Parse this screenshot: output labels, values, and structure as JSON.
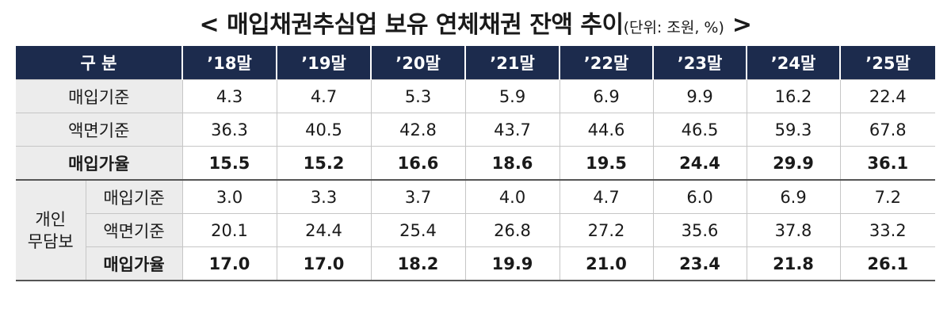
{
  "title": {
    "main": "< 매입채권추심업 보유 연체채권 잔액 추이",
    "unit": "(단위: 조원, %)",
    "close": " >"
  },
  "table": {
    "header": {
      "category": "구 분",
      "years": [
        "’18말",
        "’19말",
        "’20말",
        "’21말",
        "’22말",
        "’23말",
        "’24말",
        "’25말"
      ]
    },
    "total": {
      "purchase_basis": {
        "label": "매입기준",
        "values": [
          "4.3",
          "4.7",
          "5.3",
          "5.9",
          "6.9",
          "9.9",
          "16.2",
          "22.4"
        ]
      },
      "face_basis": {
        "label": "액면기준",
        "values": [
          "36.3",
          "40.5",
          "42.8",
          "43.7",
          "44.6",
          "46.5",
          "59.3",
          "67.8"
        ]
      },
      "purchase_rate": {
        "label": "매입가율",
        "values": [
          "15.5",
          "15.2",
          "16.6",
          "18.6",
          "19.5",
          "24.4",
          "29.9",
          "36.1"
        ]
      }
    },
    "personal_unsecured": {
      "label_line1": "개인",
      "label_line2": "무담보",
      "purchase_basis": {
        "label": "매입기준",
        "values": [
          "3.0",
          "3.3",
          "3.7",
          "4.0",
          "4.7",
          "6.0",
          "6.9",
          "7.2"
        ]
      },
      "face_basis": {
        "label": "액면기준",
        "values": [
          "20.1",
          "24.4",
          "25.4",
          "26.8",
          "27.2",
          "35.6",
          "37.8",
          "33.2"
        ]
      },
      "purchase_rate": {
        "label": "매입가율",
        "values": [
          "17.0",
          "17.0",
          "18.2",
          "19.9",
          "21.0",
          "23.4",
          "21.8",
          "26.1"
        ]
      }
    }
  }
}
